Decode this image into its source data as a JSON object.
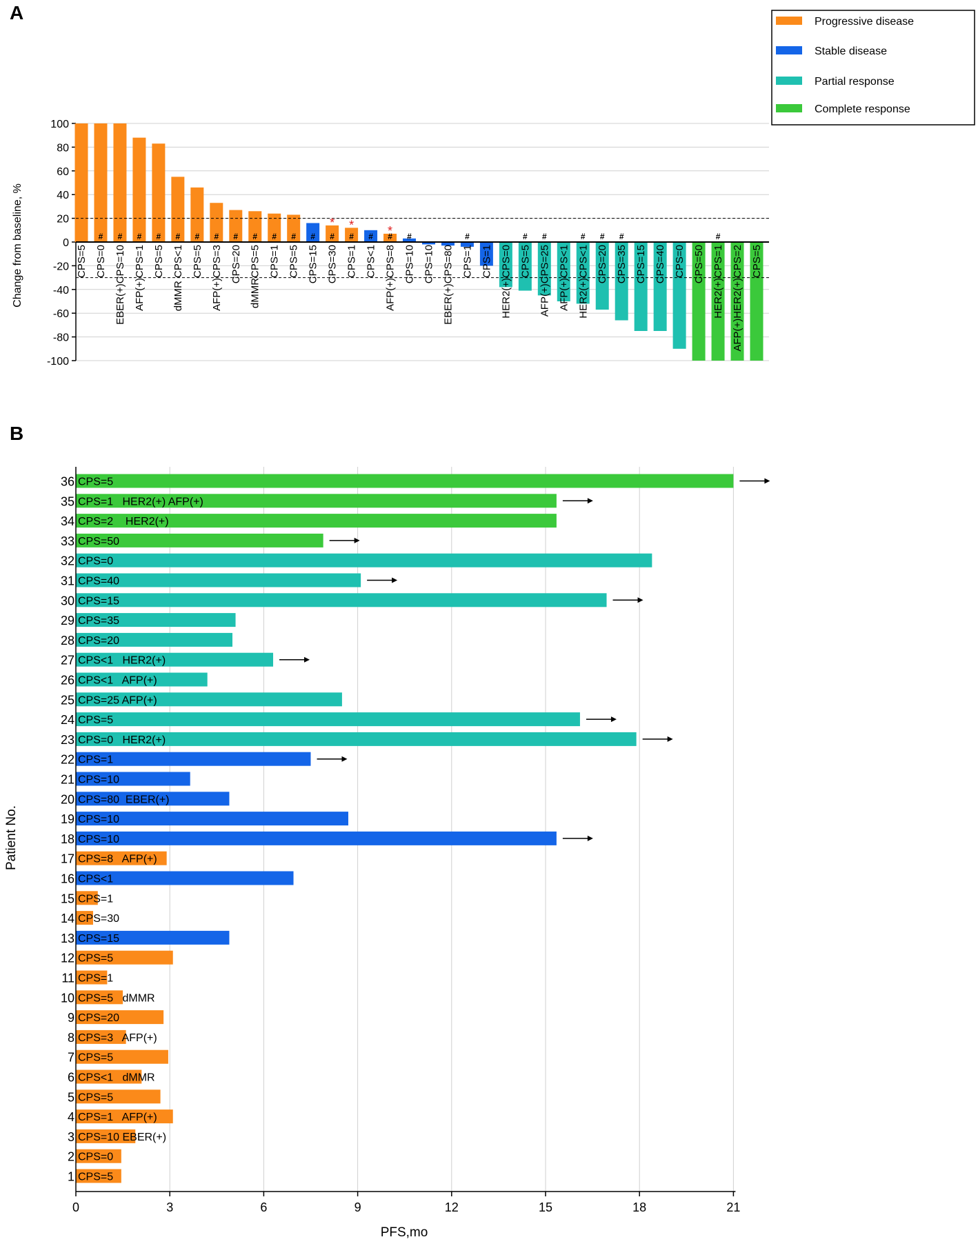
{
  "panelA": {
    "panel_label": "A",
    "legend": [
      {
        "label": "Progressive disease",
        "color": "#FB8A1A"
      },
      {
        "label": "Stable disease",
        "color": "#1465E8"
      },
      {
        "label": "Partial response",
        "color": "#1FC0B0"
      },
      {
        "label": "Complete response",
        "color": "#3BC93B"
      }
    ]
  },
  "panelB": {
    "panel_label": "B"
  },
  "chart_data": [
    {
      "type": "bar",
      "title": "",
      "xlabel": "",
      "ylabel": "Change from baseline, %",
      "ylim": [
        -100,
        100
      ],
      "yticks": [
        100,
        80,
        60,
        40,
        20,
        0,
        -20,
        -40,
        -60,
        -80,
        -100
      ],
      "reference_lines": [
        20,
        -30
      ],
      "response_colors": {
        "PD": "#FB8A1A",
        "SD": "#1465E8",
        "PR": "#1FC0B0",
        "CR": "#3BC93B"
      },
      "bars": [
        {
          "label": "CPS=5",
          "value": 100,
          "response": "PD",
          "hash": false,
          "star": false
        },
        {
          "label": "CPS=0",
          "value": 100,
          "response": "PD",
          "hash": true,
          "star": false
        },
        {
          "label": "EBER(+)CPS=10",
          "value": 100,
          "response": "PD",
          "hash": true,
          "star": false
        },
        {
          "label": "AFP(+)CPS=1",
          "value": 88,
          "response": "PD",
          "hash": true,
          "star": false
        },
        {
          "label": "CPS=5",
          "value": 83,
          "response": "PD",
          "hash": true,
          "star": false
        },
        {
          "label": "dMMR CPS<1",
          "value": 55,
          "response": "PD",
          "hash": true,
          "star": false
        },
        {
          "label": "CPS=5",
          "value": 46,
          "response": "PD",
          "hash": true,
          "star": false
        },
        {
          "label": "AFP(+)CPS=3",
          "value": 33,
          "response": "PD",
          "hash": true,
          "star": false
        },
        {
          "label": "CPS=20",
          "value": 27,
          "response": "PD",
          "hash": true,
          "star": false
        },
        {
          "label": "dMMRCPS=5",
          "value": 26,
          "response": "PD",
          "hash": true,
          "star": false
        },
        {
          "label": "CPS=1",
          "value": 24,
          "response": "PD",
          "hash": true,
          "star": false
        },
        {
          "label": "CPS=5",
          "value": 23,
          "response": "PD",
          "hash": true,
          "star": false
        },
        {
          "label": "CPS=15",
          "value": 16,
          "response": "SD",
          "hash": true,
          "star": false
        },
        {
          "label": "CPS=30",
          "value": 14,
          "response": "PD",
          "hash": true,
          "star": true
        },
        {
          "label": "CPS=1",
          "value": 12,
          "response": "PD",
          "hash": true,
          "star": true
        },
        {
          "label": "CPS<1",
          "value": 10,
          "response": "SD",
          "hash": true,
          "star": false
        },
        {
          "label": "AFP(+)CPS=8",
          "value": 7,
          "response": "PD",
          "hash": true,
          "star": true
        },
        {
          "label": "CPS=10",
          "value": 3,
          "response": "SD",
          "hash": true,
          "star": false
        },
        {
          "label": "CPS=10",
          "value": -2,
          "response": "SD",
          "hash": false,
          "star": false
        },
        {
          "label": "EBER(+)CPS=80",
          "value": -3,
          "response": "SD",
          "hash": false,
          "star": false
        },
        {
          "label": "CPS=1",
          "value": -4,
          "response": "SD",
          "hash": true,
          "star": false
        },
        {
          "label": "CPS=1",
          "value": -20,
          "response": "SD",
          "hash": false,
          "star": false
        },
        {
          "label": "HER2(+)CPS=0",
          "value": -38,
          "response": "PR",
          "hash": false,
          "star": false
        },
        {
          "label": "CPS=5",
          "value": -41,
          "response": "PR",
          "hash": true,
          "star": false
        },
        {
          "label": "AFP(+)CPS=25",
          "value": -45,
          "response": "PR",
          "hash": true,
          "star": false
        },
        {
          "label": "AFP(+)CPS<1",
          "value": -50,
          "response": "PR",
          "hash": false,
          "star": false
        },
        {
          "label": "HER2(+)CPS<1",
          "value": -52,
          "response": "PR",
          "hash": true,
          "star": false
        },
        {
          "label": "CPS=20",
          "value": -57,
          "response": "PR",
          "hash": true,
          "star": false
        },
        {
          "label": "CPS=35",
          "value": -66,
          "response": "PR",
          "hash": true,
          "star": false
        },
        {
          "label": "CPS=15",
          "value": -75,
          "response": "PR",
          "hash": false,
          "star": false
        },
        {
          "label": "CPS=40",
          "value": -75,
          "response": "PR",
          "hash": false,
          "star": false
        },
        {
          "label": "CPS=0",
          "value": -90,
          "response": "PR",
          "hash": false,
          "star": false
        },
        {
          "label": "CPS=50",
          "value": -100,
          "response": "CR",
          "hash": false,
          "star": false
        },
        {
          "label": "HER2(+)CPS=1",
          "value": -100,
          "response": "CR",
          "hash": true,
          "star": false
        },
        {
          "label": "AFP(+)HER2(+)CPS=2",
          "value": -100,
          "response": "CR",
          "hash": false,
          "star": false
        },
        {
          "label": "CPS=5",
          "value": -100,
          "response": "CR",
          "hash": false,
          "star": false
        }
      ],
      "hash_symbol": "#",
      "star_symbol": "*"
    },
    {
      "type": "bar",
      "orientation": "horizontal",
      "title": "",
      "xlabel": "PFS,mo",
      "ylabel": "Patient No.",
      "xlim": [
        0,
        21
      ],
      "xticks": [
        0,
        3,
        6,
        9,
        12,
        15,
        18,
        21
      ],
      "patients": [
        {
          "id": 36,
          "pfs": 21.0,
          "response": "CR",
          "ongoing": true,
          "label": "CPS=5"
        },
        {
          "id": 35,
          "pfs": 15.35,
          "response": "CR",
          "ongoing": true,
          "label": "CPS=1   HER2(+) AFP(+)"
        },
        {
          "id": 34,
          "pfs": 15.35,
          "response": "CR",
          "ongoing": false,
          "label": "CPS=2    HER2(+)"
        },
        {
          "id": 33,
          "pfs": 7.9,
          "response": "CR",
          "ongoing": true,
          "label": "CPS=50"
        },
        {
          "id": 32,
          "pfs": 18.4,
          "response": "PR",
          "ongoing": false,
          "label": "CPS=0"
        },
        {
          "id": 31,
          "pfs": 9.1,
          "response": "PR",
          "ongoing": true,
          "label": "CPS=40"
        },
        {
          "id": 30,
          "pfs": 16.95,
          "response": "PR",
          "ongoing": true,
          "label": "CPS=15"
        },
        {
          "id": 29,
          "pfs": 5.1,
          "response": "PR",
          "ongoing": false,
          "label": "CPS=35"
        },
        {
          "id": 28,
          "pfs": 5.0,
          "response": "PR",
          "ongoing": false,
          "label": "CPS=20"
        },
        {
          "id": 27,
          "pfs": 6.3,
          "response": "PR",
          "ongoing": true,
          "label": "CPS<1   HER2(+)"
        },
        {
          "id": 26,
          "pfs": 4.2,
          "response": "PR",
          "ongoing": false,
          "label": "CPS<1   AFP(+)"
        },
        {
          "id": 25,
          "pfs": 8.5,
          "response": "PR",
          "ongoing": false,
          "label": "CPS=25 AFP(+)"
        },
        {
          "id": 24,
          "pfs": 16.1,
          "response": "PR",
          "ongoing": true,
          "label": "CPS=5"
        },
        {
          "id": 23,
          "pfs": 17.9,
          "response": "PR",
          "ongoing": true,
          "label": "CPS=0   HER2(+)"
        },
        {
          "id": 22,
          "pfs": 7.5,
          "response": "SD",
          "ongoing": true,
          "label": "CPS=1"
        },
        {
          "id": 21,
          "pfs": 3.65,
          "response": "SD",
          "ongoing": false,
          "label": "CPS=10"
        },
        {
          "id": 20,
          "pfs": 4.9,
          "response": "SD",
          "ongoing": false,
          "label": "CPS=80  EBER(+)"
        },
        {
          "id": 19,
          "pfs": 8.7,
          "response": "SD",
          "ongoing": false,
          "label": "CPS=10"
        },
        {
          "id": 18,
          "pfs": 15.35,
          "response": "SD",
          "ongoing": true,
          "label": "CPS=10"
        },
        {
          "id": 17,
          "pfs": 2.9,
          "response": "PD",
          "ongoing": false,
          "label": "CPS=8   AFP(+)"
        },
        {
          "id": 16,
          "pfs": 6.95,
          "response": "SD",
          "ongoing": false,
          "label": "CPS<1"
        },
        {
          "id": 15,
          "pfs": 0.7,
          "response": "PD",
          "ongoing": false,
          "label": "CPS=1"
        },
        {
          "id": 14,
          "pfs": 0.55,
          "response": "PD",
          "ongoing": false,
          "label": "CPS=30"
        },
        {
          "id": 13,
          "pfs": 4.9,
          "response": "SD",
          "ongoing": false,
          "label": "CPS=15"
        },
        {
          "id": 12,
          "pfs": 3.1,
          "response": "PD",
          "ongoing": false,
          "label": "CPS=5"
        },
        {
          "id": 11,
          "pfs": 1.0,
          "response": "PD",
          "ongoing": false,
          "label": "CPS=1"
        },
        {
          "id": 10,
          "pfs": 1.5,
          "response": "PD",
          "ongoing": false,
          "label": "CPS=5   dMMR"
        },
        {
          "id": 9,
          "pfs": 2.8,
          "response": "PD",
          "ongoing": false,
          "label": "CPS=20"
        },
        {
          "id": 8,
          "pfs": 1.6,
          "response": "PD",
          "ongoing": false,
          "label": "CPS=3   AFP(+)"
        },
        {
          "id": 7,
          "pfs": 2.95,
          "response": "PD",
          "ongoing": false,
          "label": "CPS=5"
        },
        {
          "id": 6,
          "pfs": 2.1,
          "response": "PD",
          "ongoing": false,
          "label": "CPS<1   dMMR"
        },
        {
          "id": 5,
          "pfs": 2.7,
          "response": "PD",
          "ongoing": false,
          "label": "CPS=5"
        },
        {
          "id": 4,
          "pfs": 3.1,
          "response": "PD",
          "ongoing": false,
          "label": "CPS=1   AFP(+)"
        },
        {
          "id": 3,
          "pfs": 1.9,
          "response": "PD",
          "ongoing": false,
          "label": "CPS=10 EBER(+)"
        },
        {
          "id": 2,
          "pfs": 1.45,
          "response": "PD",
          "ongoing": false,
          "label": "CPS=0"
        },
        {
          "id": 1,
          "pfs": 1.45,
          "response": "PD",
          "ongoing": false,
          "label": "CPS=5"
        }
      ]
    }
  ]
}
